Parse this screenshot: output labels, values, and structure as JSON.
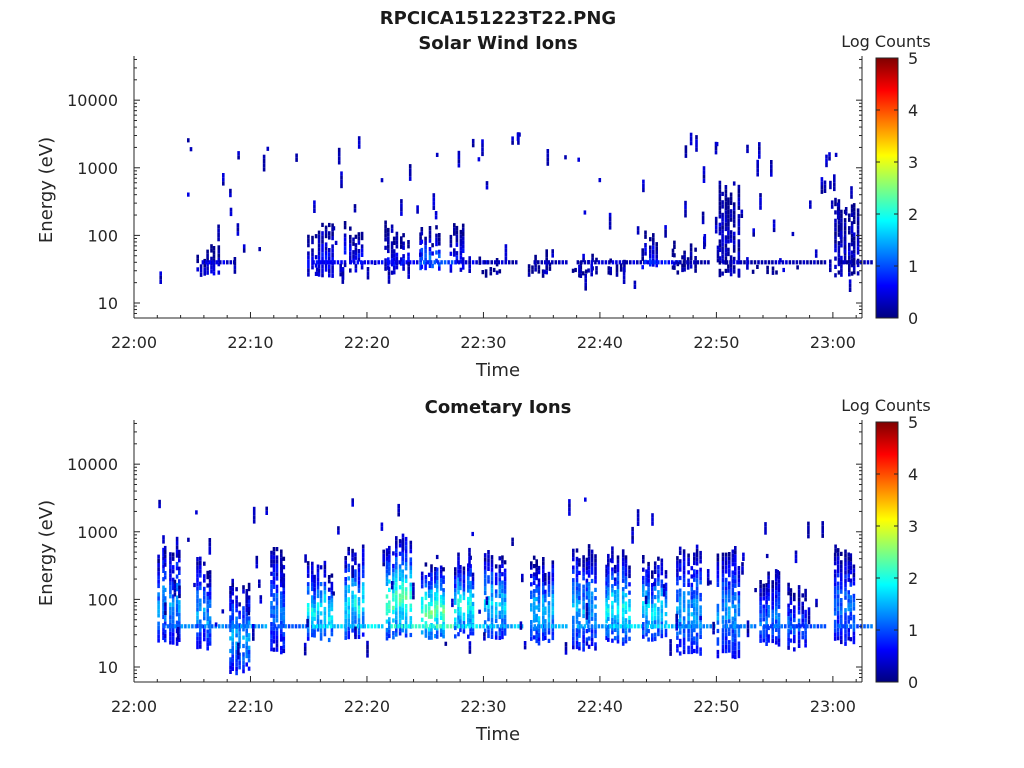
{
  "figure": {
    "title": "RPCICA151223T22.PNG"
  },
  "chart_data": [
    {
      "type": "heatmap",
      "title": "Solar Wind Ions",
      "xlabel": "Time",
      "ylabel": "Energy (eV)",
      "x_ticks": [
        "22:00",
        "22:10",
        "22:20",
        "22:30",
        "22:40",
        "22:50",
        "23:00"
      ],
      "x_tick_minutes": [
        0,
        10,
        20,
        30,
        40,
        50,
        60
      ],
      "xlim_minutes": [
        0,
        62.5
      ],
      "y_scale": "log",
      "y_ticks": [
        "10",
        "100",
        "1000",
        "10000"
      ],
      "y_tick_values": [
        10,
        100,
        1000,
        10000
      ],
      "ylim": [
        6,
        45000
      ],
      "grid": false,
      "colorbar": {
        "label": "Log Counts",
        "ticks": [
          "0",
          "1",
          "2",
          "3",
          "4",
          "5"
        ],
        "range": [
          0,
          5
        ],
        "colormap": "jet"
      },
      "bursts": [
        {
          "t": 6.3,
          "emin": 25,
          "emax": 80,
          "lvl": 0.5
        },
        {
          "t": 15.8,
          "emin": 25,
          "emax": 180,
          "lvl": 0.6
        },
        {
          "t": 19.0,
          "emin": 30,
          "emax": 180,
          "lvl": 0.6
        },
        {
          "t": 22.3,
          "emin": 28,
          "emax": 170,
          "lvl": 0.6
        },
        {
          "t": 25.3,
          "emin": 30,
          "emax": 160,
          "lvl": 1.1
        },
        {
          "t": 28.0,
          "emin": 30,
          "emax": 150,
          "lvl": 0.6
        },
        {
          "t": 30.5,
          "emin": 25,
          "emax": 50,
          "lvl": 0.3
        },
        {
          "t": 34.8,
          "emin": 25,
          "emax": 60,
          "lvl": 0.3
        },
        {
          "t": 38.5,
          "emin": 25,
          "emax": 50,
          "lvl": 0.3
        },
        {
          "t": 41.5,
          "emin": 25,
          "emax": 50,
          "lvl": 0.4
        },
        {
          "t": 44.5,
          "emin": 30,
          "emax": 120,
          "lvl": 0.8
        },
        {
          "t": 47.0,
          "emin": 28,
          "emax": 80,
          "lvl": 0.3
        },
        {
          "t": 51.0,
          "emin": 25,
          "emax": 700,
          "lvl": 0.3
        },
        {
          "t": 54.0,
          "emin": 28,
          "emax": 40,
          "lvl": 0.3
        },
        {
          "t": 57.0,
          "emin": 30,
          "emax": 45,
          "lvl": 0.2
        },
        {
          "t": 61.0,
          "emin": 25,
          "emax": 400,
          "lvl": 0.3
        }
      ],
      "sparse_events": 110
    },
    {
      "type": "heatmap",
      "title": "Cometary Ions",
      "xlabel": "Time",
      "ylabel": "Energy (eV)",
      "x_ticks": [
        "22:00",
        "22:10",
        "22:20",
        "22:30",
        "22:40",
        "22:50",
        "23:00"
      ],
      "x_tick_minutes": [
        0,
        10,
        20,
        30,
        40,
        50,
        60
      ],
      "xlim_minutes": [
        0,
        62.5
      ],
      "y_scale": "log",
      "y_ticks": [
        "10",
        "100",
        "1000",
        "10000"
      ],
      "y_tick_values": [
        10,
        100,
        1000,
        10000
      ],
      "ylim": [
        6,
        45000
      ],
      "grid": false,
      "colorbar": {
        "label": "Log Counts",
        "ticks": [
          "0",
          "1",
          "2",
          "3",
          "4",
          "5"
        ],
        "range": [
          0,
          5
        ],
        "colormap": "jet"
      },
      "bursts": [
        {
          "t": 3.0,
          "emin": 20,
          "emax": 900,
          "lvl": 1.4
        },
        {
          "t": 6.2,
          "emin": 18,
          "emax": 500,
          "lvl": 1.4
        },
        {
          "t": 9.0,
          "emin": 8,
          "emax": 200,
          "lvl": 1.5
        },
        {
          "t": 12.5,
          "emin": 15,
          "emax": 800,
          "lvl": 1.2
        },
        {
          "t": 15.8,
          "emin": 25,
          "emax": 400,
          "lvl": 1.9
        },
        {
          "t": 19.0,
          "emin": 25,
          "emax": 700,
          "lvl": 1.9
        },
        {
          "t": 22.5,
          "emin": 25,
          "emax": 900,
          "lvl": 2.3
        },
        {
          "t": 25.5,
          "emin": 25,
          "emax": 500,
          "lvl": 2.4
        },
        {
          "t": 28.3,
          "emin": 28,
          "emax": 500,
          "lvl": 2.0
        },
        {
          "t": 31.0,
          "emin": 25,
          "emax": 600,
          "lvl": 1.7
        },
        {
          "t": 34.8,
          "emin": 22,
          "emax": 500,
          "lvl": 1.6
        },
        {
          "t": 38.5,
          "emin": 18,
          "emax": 700,
          "lvl": 1.5
        },
        {
          "t": 41.3,
          "emin": 22,
          "emax": 600,
          "lvl": 1.9
        },
        {
          "t": 44.5,
          "emin": 25,
          "emax": 500,
          "lvl": 1.8
        },
        {
          "t": 47.5,
          "emin": 14,
          "emax": 700,
          "lvl": 1.5
        },
        {
          "t": 51.0,
          "emin": 14,
          "emax": 700,
          "lvl": 1.4
        },
        {
          "t": 54.5,
          "emin": 20,
          "emax": 300,
          "lvl": 1.2
        },
        {
          "t": 57.0,
          "emin": 18,
          "emax": 250,
          "lvl": 1.1
        },
        {
          "t": 61.0,
          "emin": 22,
          "emax": 600,
          "lvl": 1.2
        }
      ],
      "sparse_events": 80
    }
  ]
}
